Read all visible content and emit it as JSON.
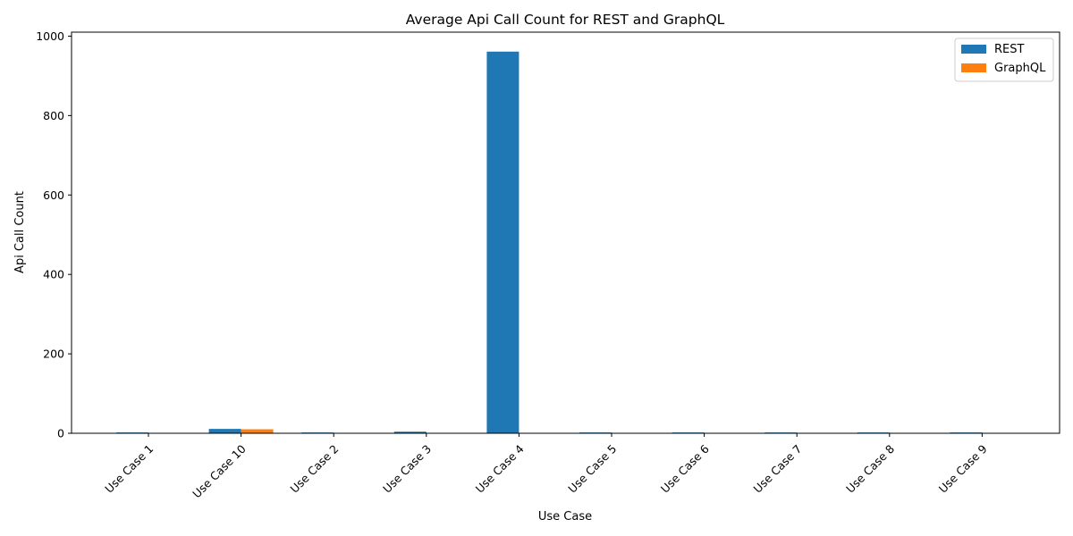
{
  "chart_data": {
    "type": "bar",
    "title": "Average Api Call Count for REST and GraphQL",
    "xlabel": "Use Case",
    "ylabel": "Api Call Count",
    "categories": [
      "Use Case 1",
      "Use Case 10",
      "Use Case 2",
      "Use Case 3",
      "Use Case 4",
      "Use Case 5",
      "Use Case 6",
      "Use Case 7",
      "Use Case 8",
      "Use Case 9"
    ],
    "series": [
      {
        "name": "REST",
        "color": "#1f77b4",
        "values": [
          2,
          11,
          2,
          4,
          961,
          2,
          2,
          2,
          2,
          2
        ]
      },
      {
        "name": "GraphQL",
        "color": "#ff7f0e",
        "values": [
          1,
          10,
          1,
          1,
          1,
          1,
          1,
          1,
          1,
          1
        ]
      }
    ],
    "ylim": [
      0,
      1010
    ],
    "yticks": [
      0,
      200,
      400,
      600,
      800,
      1000
    ],
    "grid": false,
    "legend_position": "top-right"
  }
}
